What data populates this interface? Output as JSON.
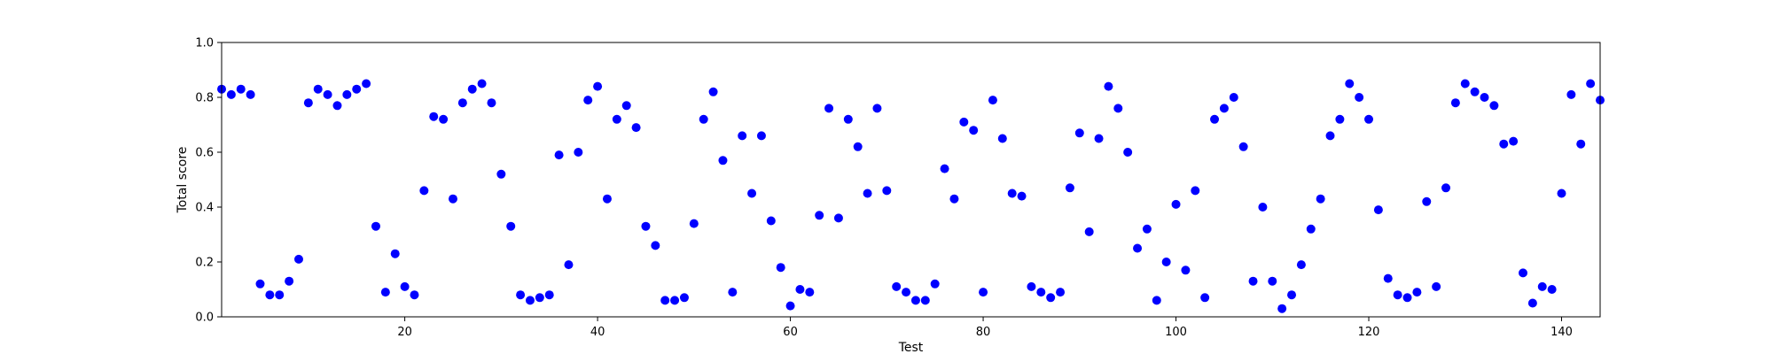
{
  "chart_data": {
    "type": "scatter",
    "xlabel": "Test",
    "ylabel": "Total score",
    "xlim": [
      1,
      144
    ],
    "ylim": [
      0,
      1
    ],
    "x_ticks": [
      20,
      40,
      60,
      80,
      100,
      120,
      140
    ],
    "y_ticks": [
      "0.0",
      "0.2",
      "0.4",
      "0.6",
      "0.8",
      "1.0"
    ],
    "marker_color": "#0000ff",
    "grid": false,
    "series": [
      {
        "x": [
          1,
          2,
          3,
          4,
          5,
          6,
          7,
          8,
          9,
          10,
          11,
          12,
          13,
          14,
          15,
          16,
          17,
          18,
          19,
          20,
          21,
          22,
          23,
          24,
          25,
          26,
          27,
          28,
          29,
          30,
          31,
          32,
          33,
          34,
          35,
          36,
          37,
          38,
          39,
          40,
          41,
          42,
          43,
          44,
          45,
          46,
          47,
          48,
          49,
          50,
          51,
          52,
          53,
          54,
          55,
          56,
          57,
          58,
          59,
          60,
          61,
          62,
          63,
          64,
          65,
          66,
          67,
          68,
          69,
          70,
          71,
          72,
          73,
          74,
          75,
          76,
          77,
          78,
          79,
          80,
          81,
          82,
          83,
          84,
          85,
          86,
          87,
          88,
          89,
          90,
          91,
          92,
          93,
          94,
          95,
          96,
          97,
          98,
          99,
          100,
          101,
          102,
          103,
          104,
          105,
          106,
          107,
          108,
          109,
          110,
          111,
          112,
          113,
          114,
          115,
          116,
          117,
          118,
          119,
          120,
          121,
          122,
          123,
          124,
          125,
          126,
          127,
          128,
          129,
          130,
          131,
          132,
          133,
          134,
          135,
          136,
          137,
          138,
          139,
          140,
          141,
          142,
          143,
          144
        ],
        "y": [
          0.83,
          0.81,
          0.83,
          0.81,
          0.12,
          0.08,
          0.08,
          0.13,
          0.21,
          0.78,
          0.83,
          0.81,
          0.77,
          0.81,
          0.83,
          0.85,
          0.33,
          0.09,
          0.23,
          0.11,
          0.08,
          0.46,
          0.73,
          0.72,
          0.43,
          0.78,
          0.83,
          0.85,
          0.78,
          0.52,
          0.33,
          0.08,
          0.06,
          0.07,
          0.08,
          0.59,
          0.19,
          0.6,
          0.79,
          0.84,
          0.43,
          0.72,
          0.77,
          0.69,
          0.33,
          0.26,
          0.06,
          0.06,
          0.07,
          0.34,
          0.72,
          0.82,
          0.57,
          0.09,
          0.66,
          0.45,
          0.66,
          0.35,
          0.18,
          0.04,
          0.1,
          0.09,
          0.37,
          0.76,
          0.36,
          0.72,
          0.62,
          0.45,
          0.76,
          0.46,
          0.11,
          0.09,
          0.06,
          0.06,
          0.12,
          0.54,
          0.43,
          0.71,
          0.68,
          0.09,
          0.79,
          0.65,
          0.45,
          0.44,
          0.11,
          0.09,
          0.07,
          0.09,
          0.47,
          0.67,
          0.31,
          0.65,
          0.84,
          0.76,
          0.6,
          0.25,
          0.32,
          0.06,
          0.2,
          0.41,
          0.17,
          0.46,
          0.07,
          0.72,
          0.76,
          0.8,
          0.62,
          0.13,
          0.4,
          0.13,
          0.03,
          0.08,
          0.19,
          0.32,
          0.43,
          0.66,
          0.72,
          0.85,
          0.8,
          0.72,
          0.39,
          0.14,
          0.08,
          0.07,
          0.09,
          0.42,
          0.11,
          0.47,
          0.78,
          0.85,
          0.82,
          0.8,
          0.77,
          0.63,
          0.64,
          0.16,
          0.05,
          0.11,
          0.1,
          0.45,
          0.81,
          0.63,
          0.85,
          0.79
        ]
      }
    ]
  }
}
